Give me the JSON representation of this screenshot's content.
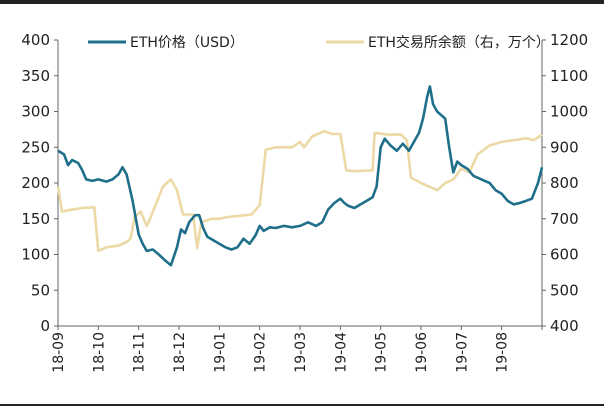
{
  "chart_data": {
    "type": "line",
    "x_ticks": [
      "18-09",
      "18-10",
      "18-11",
      "18-12",
      "19-01",
      "19-02",
      "19-03",
      "19-04",
      "19-05",
      "19-06",
      "19-07",
      "19-08"
    ],
    "y_left": {
      "min": 0,
      "max": 400,
      "ticks": [
        0,
        50,
        100,
        150,
        200,
        250,
        300,
        350,
        400
      ]
    },
    "y_right": {
      "min": 400,
      "max": 1200,
      "ticks": [
        400,
        500,
        600,
        700,
        800,
        900,
        1000,
        1100,
        1200
      ]
    },
    "grid": false,
    "legend_position": "top",
    "series": [
      {
        "name": "ETH价格（USD）",
        "axis": "left",
        "color": "#1f6f8b",
        "points": [
          [
            0.0,
            245
          ],
          [
            0.15,
            240
          ],
          [
            0.25,
            225
          ],
          [
            0.35,
            232
          ],
          [
            0.5,
            228
          ],
          [
            0.6,
            218
          ],
          [
            0.7,
            205
          ],
          [
            0.85,
            203
          ],
          [
            1.0,
            205
          ],
          [
            1.2,
            202
          ],
          [
            1.35,
            205
          ],
          [
            1.5,
            212
          ],
          [
            1.6,
            222
          ],
          [
            1.7,
            212
          ],
          [
            1.85,
            175
          ],
          [
            2.0,
            128
          ],
          [
            2.1,
            115
          ],
          [
            2.2,
            105
          ],
          [
            2.35,
            107
          ],
          [
            2.5,
            100
          ],
          [
            2.65,
            92
          ],
          [
            2.8,
            85
          ],
          [
            2.95,
            110
          ],
          [
            3.05,
            135
          ],
          [
            3.15,
            130
          ],
          [
            3.25,
            145
          ],
          [
            3.4,
            155
          ],
          [
            3.5,
            155
          ],
          [
            3.6,
            137
          ],
          [
            3.7,
            125
          ],
          [
            3.85,
            120
          ],
          [
            4.0,
            115
          ],
          [
            4.15,
            110
          ],
          [
            4.3,
            107
          ],
          [
            4.45,
            110
          ],
          [
            4.6,
            122
          ],
          [
            4.75,
            115
          ],
          [
            4.9,
            127
          ],
          [
            5.0,
            140
          ],
          [
            5.1,
            133
          ],
          [
            5.25,
            138
          ],
          [
            5.4,
            137
          ],
          [
            5.6,
            140
          ],
          [
            5.8,
            138
          ],
          [
            6.0,
            140
          ],
          [
            6.2,
            145
          ],
          [
            6.4,
            140
          ],
          [
            6.55,
            145
          ],
          [
            6.7,
            163
          ],
          [
            6.85,
            172
          ],
          [
            7.0,
            178
          ],
          [
            7.1,
            172
          ],
          [
            7.2,
            168
          ],
          [
            7.35,
            165
          ],
          [
            7.5,
            170
          ],
          [
            7.65,
            175
          ],
          [
            7.8,
            180
          ],
          [
            7.9,
            195
          ],
          [
            8.0,
            250
          ],
          [
            8.1,
            262
          ],
          [
            8.25,
            252
          ],
          [
            8.4,
            245
          ],
          [
            8.55,
            255
          ],
          [
            8.7,
            245
          ],
          [
            8.85,
            260
          ],
          [
            8.95,
            270
          ],
          [
            9.05,
            290
          ],
          [
            9.15,
            320
          ],
          [
            9.22,
            335
          ],
          [
            9.3,
            310
          ],
          [
            9.4,
            300
          ],
          [
            9.5,
            295
          ],
          [
            9.6,
            290
          ],
          [
            9.7,
            250
          ],
          [
            9.8,
            215
          ],
          [
            9.9,
            230
          ],
          [
            10.0,
            225
          ],
          [
            10.15,
            220
          ],
          [
            10.3,
            210
          ],
          [
            10.5,
            205
          ],
          [
            10.7,
            200
          ],
          [
            10.85,
            190
          ],
          [
            11.0,
            185
          ],
          [
            11.15,
            175
          ],
          [
            11.3,
            170
          ],
          [
            11.45,
            172
          ],
          [
            11.6,
            175
          ],
          [
            11.75,
            178
          ],
          [
            11.9,
            200
          ],
          [
            12.0,
            222
          ]
        ]
      },
      {
        "name": "ETH交易所余额（右，万个）",
        "axis": "right",
        "color": "#ecd9a6",
        "points": [
          [
            0.0,
            790
          ],
          [
            0.1,
            720
          ],
          [
            0.3,
            725
          ],
          [
            0.6,
            730
          ],
          [
            0.9,
            732
          ],
          [
            1.0,
            610
          ],
          [
            1.2,
            620
          ],
          [
            1.5,
            625
          ],
          [
            1.7,
            635
          ],
          [
            1.8,
            645
          ],
          [
            1.9,
            705
          ],
          [
            2.05,
            720
          ],
          [
            2.2,
            680
          ],
          [
            2.3,
            705
          ],
          [
            2.6,
            790
          ],
          [
            2.8,
            810
          ],
          [
            2.95,
            780
          ],
          [
            3.1,
            712
          ],
          [
            3.35,
            712
          ],
          [
            3.45,
            618
          ],
          [
            3.55,
            690
          ],
          [
            3.8,
            700
          ],
          [
            4.0,
            700
          ],
          [
            4.2,
            705
          ],
          [
            4.5,
            708
          ],
          [
            4.8,
            712
          ],
          [
            5.0,
            738
          ],
          [
            5.15,
            893
          ],
          [
            5.4,
            900
          ],
          [
            5.8,
            900
          ],
          [
            6.0,
            915
          ],
          [
            6.1,
            900
          ],
          [
            6.3,
            930
          ],
          [
            6.6,
            945
          ],
          [
            6.8,
            937
          ],
          [
            7.0,
            937
          ],
          [
            7.15,
            835
          ],
          [
            7.4,
            833
          ],
          [
            7.7,
            835
          ],
          [
            7.8,
            835
          ],
          [
            7.85,
            940
          ],
          [
            8.2,
            935
          ],
          [
            8.5,
            936
          ],
          [
            8.65,
            920
          ],
          [
            8.75,
            815
          ],
          [
            9.0,
            800
          ],
          [
            9.2,
            790
          ],
          [
            9.4,
            780
          ],
          [
            9.6,
            800
          ],
          [
            9.8,
            810
          ],
          [
            10.0,
            840
          ],
          [
            10.2,
            830
          ],
          [
            10.4,
            880
          ],
          [
            10.7,
            905
          ],
          [
            11.0,
            915
          ],
          [
            11.3,
            920
          ],
          [
            11.6,
            925
          ],
          [
            11.8,
            920
          ],
          [
            12.0,
            935
          ]
        ]
      }
    ]
  }
}
